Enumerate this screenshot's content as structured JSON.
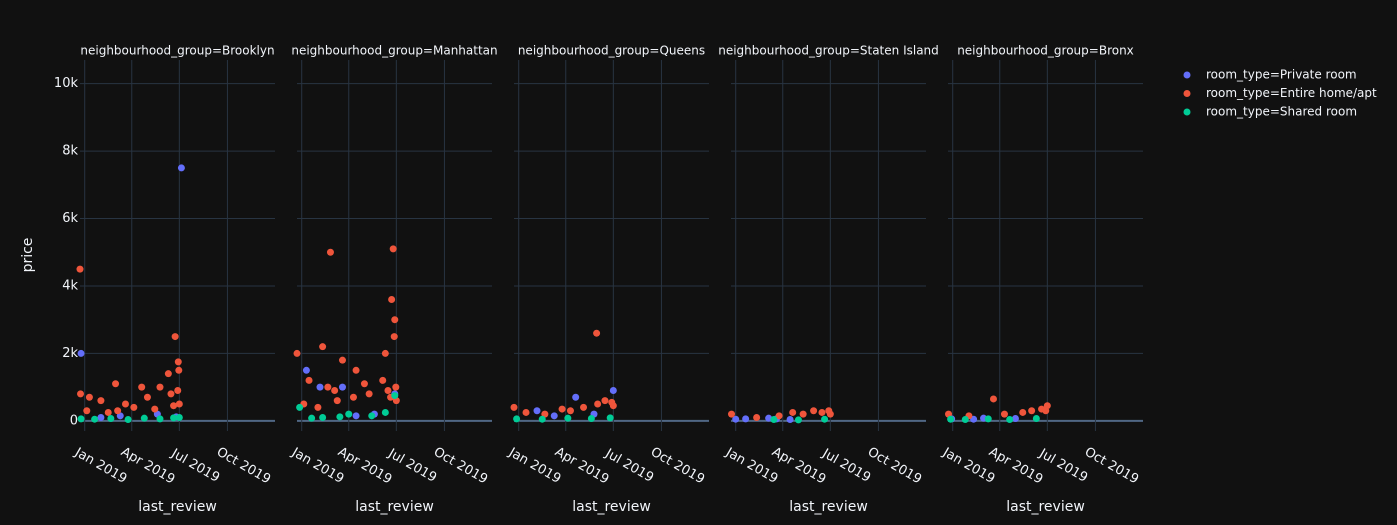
{
  "chart_data": {
    "type": "scatter",
    "ylabel": "price",
    "xlabel": "last_review",
    "ylim": [
      -300,
      10700
    ],
    "yticks": [
      0,
      {
        "value": 2000,
        "label": "2k"
      },
      {
        "value": 4000,
        "label": "4k"
      },
      {
        "value": 6000,
        "label": "6k"
      },
      {
        "value": 8000,
        "label": "8k"
      },
      {
        "value": 10000,
        "label": "10k"
      }
    ],
    "xlim": [
      "2018-12-23",
      "2019-12-31"
    ],
    "xticks": [
      {
        "value": "2019-01-01",
        "label": "Jan 2019"
      },
      {
        "value": "2019-04-01",
        "label": "Apr 2019"
      },
      {
        "value": "2019-07-01",
        "label": "Jul 2019"
      },
      {
        "value": "2019-10-01",
        "label": "Oct 2019"
      }
    ],
    "grid": true,
    "legend": "top-right",
    "series": [
      {
        "name": "room_type=Private room",
        "color": "#636efa"
      },
      {
        "name": "room_type=Entire home/apt",
        "color": "#ef553b"
      },
      {
        "name": "room_type=Shared room",
        "color": "#00cc96"
      }
    ],
    "facets": [
      {
        "title": "neighbourhood_group=Brooklyn",
        "series": [
          {
            "x": [
              "2018-12-25",
              "2019-07-05",
              "2019-03-10",
              "2019-05-20",
              "2019-06-25",
              "2019-02-01"
            ],
            "values": [
              2000,
              7500,
              150,
              200,
              120,
              100
            ]
          },
          {
            "x": [
              "2018-12-23",
              "2019-06-23",
              "2019-06-29",
              "2019-06-30",
              "2019-03-01",
              "2019-04-20",
              "2019-05-25",
              "2019-06-10",
              "2019-01-10",
              "2019-02-01",
              "2019-03-20",
              "2019-05-01",
              "2019-06-15",
              "2019-06-28",
              "2019-01-05",
              "2019-02-15",
              "2019-04-05",
              "2019-05-15",
              "2019-06-20",
              "2019-07-01",
              "2018-12-24",
              "2019-03-05"
            ],
            "values": [
              4500,
              2500,
              1750,
              1500,
              1100,
              1000,
              1000,
              1400,
              700,
              600,
              500,
              700,
              800,
              900,
              300,
              250,
              400,
              350,
              450,
              500,
              800,
              300
            ]
          },
          {
            "x": [
              "2018-12-25",
              "2019-01-20",
              "2019-02-20",
              "2019-03-25",
              "2019-04-25",
              "2019-05-25",
              "2019-06-20",
              "2019-07-01"
            ],
            "values": [
              60,
              50,
              70,
              40,
              80,
              60,
              90,
              100
            ]
          }
        ]
      },
      {
        "title": "neighbourhood_group=Manhattan",
        "series": [
          {
            "x": [
              "2019-01-10",
              "2019-02-05",
              "2019-03-20",
              "2019-06-28",
              "2019-04-15",
              "2019-05-20"
            ],
            "values": [
              1500,
              1000,
              1000,
              800,
              150,
              200
            ]
          },
          {
            "x": [
              "2019-02-25",
              "2019-06-25",
              "2019-06-22",
              "2019-06-28",
              "2019-06-27",
              "2018-12-23",
              "2019-02-10",
              "2019-03-20",
              "2019-06-10",
              "2019-04-15",
              "2019-01-15",
              "2019-02-20",
              "2019-03-05",
              "2019-05-01",
              "2019-06-05",
              "2019-06-30",
              "2019-01-05",
              "2019-02-01",
              "2019-03-10",
              "2019-04-10",
              "2019-05-10",
              "2019-06-15",
              "2019-06-20",
              "2019-07-01"
            ],
            "values": [
              5000,
              5100,
              3600,
              3000,
              2500,
              2000,
              2200,
              1800,
              2000,
              1500,
              1200,
              1000,
              900,
              1100,
              1200,
              1000,
              500,
              400,
              600,
              700,
              800,
              900,
              700,
              600
            ]
          },
          {
            "x": [
              "2018-12-28",
              "2019-02-10",
              "2019-04-01",
              "2019-05-15",
              "2019-06-10",
              "2019-06-28",
              "2019-01-20",
              "2019-03-15"
            ],
            "values": [
              400,
              100,
              200,
              150,
              250,
              750,
              80,
              120
            ]
          }
        ]
      },
      {
        "title": "neighbourhood_group=Queens",
        "series": [
          {
            "x": [
              "2019-02-05",
              "2019-04-20",
              "2019-07-01",
              "2019-03-10",
              "2019-05-25"
            ],
            "values": [
              300,
              700,
              900,
              150,
              200
            ]
          },
          {
            "x": [
              "2019-05-30",
              "2018-12-23",
              "2019-04-10",
              "2019-06-15",
              "2019-01-15",
              "2019-02-20",
              "2019-03-25",
              "2019-05-05",
              "2019-06-01",
              "2019-06-28",
              "2019-07-01"
            ],
            "values": [
              2600,
              400,
              300,
              600,
              250,
              200,
              350,
              400,
              500,
              550,
              450
            ]
          },
          {
            "x": [
              "2018-12-28",
              "2019-02-15",
              "2019-04-05",
              "2019-05-20",
              "2019-06-25"
            ],
            "values": [
              60,
              50,
              80,
              70,
              90
            ]
          }
        ]
      },
      {
        "title": "neighbourhood_group=Staten Island",
        "series": [
          {
            "x": [
              "2019-01-01",
              "2019-01-20",
              "2019-03-05",
              "2019-03-20",
              "2019-04-15"
            ],
            "values": [
              50,
              60,
              80,
              60,
              40
            ]
          },
          {
            "x": [
              "2018-12-24",
              "2019-02-10",
              "2019-03-25",
              "2019-04-20",
              "2019-05-10",
              "2019-05-30",
              "2019-06-15",
              "2019-06-28",
              "2019-07-01"
            ],
            "values": [
              200,
              100,
              150,
              250,
              200,
              300,
              250,
              300,
              200
            ]
          },
          {
            "x": [
              "2019-03-15",
              "2019-05-01",
              "2019-06-20"
            ],
            "values": [
              40,
              30,
              50
            ]
          }
        ]
      },
      {
        "title": "neighbourhood_group=Bronx",
        "series": [
          {
            "x": [
              "2018-12-30",
              "2019-02-10",
              "2019-03-01",
              "2019-05-01"
            ],
            "values": [
              60,
              50,
              80,
              70
            ]
          },
          {
            "x": [
              "2019-03-20",
              "2018-12-24",
              "2019-02-01",
              "2019-04-10",
              "2019-05-15",
              "2019-06-01",
              "2019-06-20",
              "2019-07-01",
              "2019-06-28"
            ],
            "values": [
              650,
              200,
              150,
              200,
              250,
              300,
              350,
              450,
              300
            ]
          },
          {
            "x": [
              "2018-12-28",
              "2019-01-25",
              "2019-03-10",
              "2019-04-20",
              "2019-06-10"
            ],
            "values": [
              50,
              40,
              60,
              40,
              70
            ]
          }
        ]
      }
    ]
  }
}
